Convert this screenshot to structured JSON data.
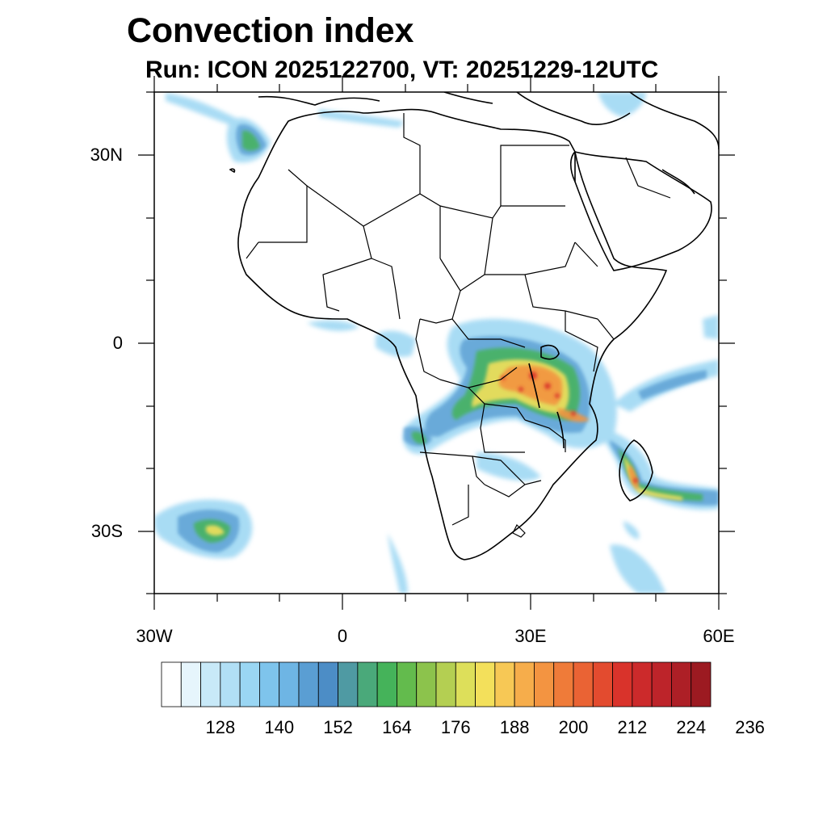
{
  "header": {
    "title": "Convection index",
    "subtitle": "Run: ICON 2025122700,  VT: 20251229-12UTC"
  },
  "map": {
    "region": "Africa",
    "lat_ticks": [
      {
        "lat": 30,
        "label": "30N"
      },
      {
        "lat": 0,
        "label": "0"
      },
      {
        "lat": -30,
        "label": "30S"
      }
    ],
    "lon_ticks": [
      {
        "lon": -30,
        "label": "30W"
      },
      {
        "lon": 0,
        "label": "0"
      },
      {
        "lon": 30,
        "label": "30E"
      },
      {
        "lon": 60,
        "label": "60E"
      }
    ],
    "extent": {
      "lon": [
        -30,
        60
      ],
      "lat": [
        -40,
        40
      ]
    }
  },
  "colorbar": {
    "labels": [
      "128",
      "140",
      "152",
      "164",
      "176",
      "188",
      "200",
      "212",
      "224",
      "236"
    ],
    "colors": [
      "#ffffff",
      "#e6f5fc",
      "#c8e9f8",
      "#b1dff5",
      "#9ad6f3",
      "#7ec4ec",
      "#6eb5e4",
      "#5a9ed3",
      "#4c8dc6",
      "#4f9aa3",
      "#4aa97a",
      "#45b35a",
      "#63bb4d",
      "#8cc34c",
      "#b4cf52",
      "#dddf5a",
      "#f3e05b",
      "#f7c855",
      "#f6ad4b",
      "#f39441",
      "#ef7b39",
      "#ea6334",
      "#e34b2f",
      "#d9332b",
      "#cc2a2b",
      "#bd242a",
      "#ad1f26",
      "#9c1a21"
    ]
  }
}
